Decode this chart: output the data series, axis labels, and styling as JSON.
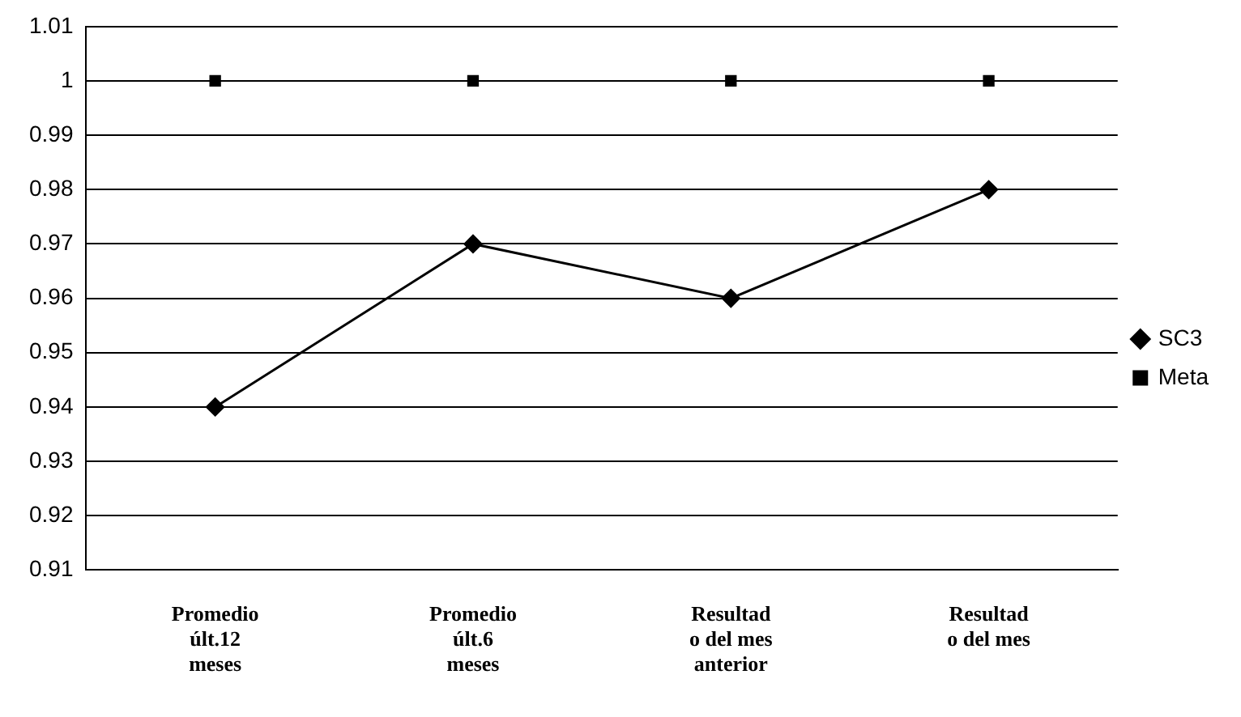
{
  "chart_data": {
    "type": "line",
    "categories": [
      "Promedio últ.12 meses",
      "Promedio últ.6 meses",
      "Resultad o del mes anterior",
      "Resultad o del mes"
    ],
    "series": [
      {
        "name": "SC3",
        "color": "#000000",
        "marker": "diamond",
        "values": [
          0.94,
          0.97,
          0.96,
          0.98
        ]
      },
      {
        "name": "Meta",
        "type": "scatter",
        "color": "#000000",
        "marker": "square",
        "values": [
          1,
          1,
          1,
          1
        ]
      }
    ],
    "ylim": [
      0.91,
      1.01
    ],
    "yticks": [
      0.91,
      0.92,
      0.93,
      0.94,
      0.95,
      0.96,
      0.97,
      0.98,
      0.99,
      1,
      1.01
    ],
    "grid": "y",
    "legend": "right"
  }
}
